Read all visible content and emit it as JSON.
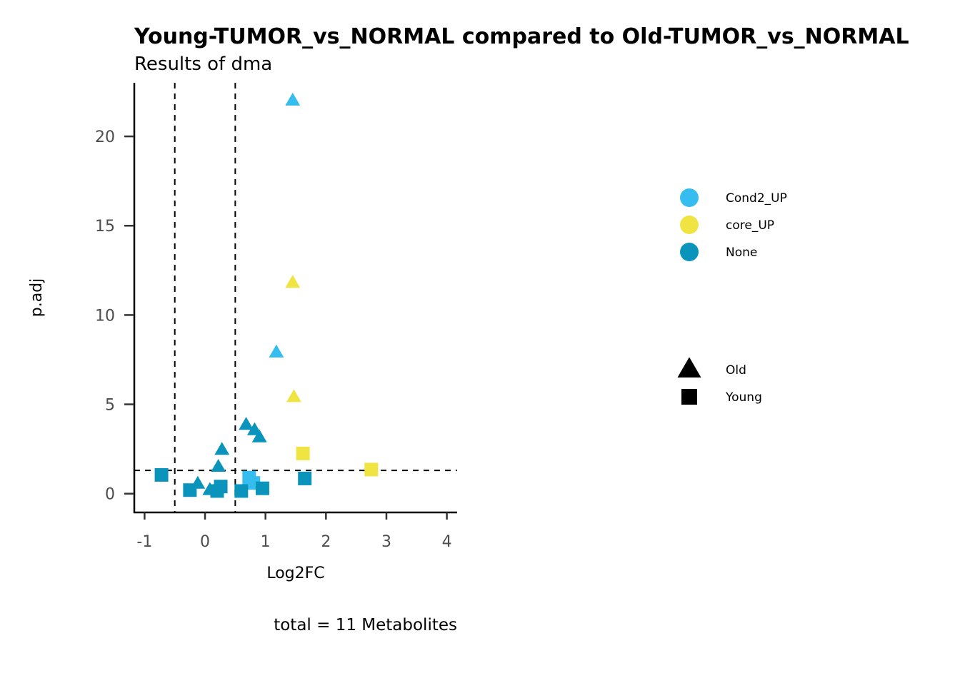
{
  "chart_data": {
    "type": "scatter",
    "title": "Young-TUMOR_vs_NORMAL compared to Old-TUMOR_vs_NORMAL",
    "subtitle": "Results of dma",
    "xlabel": "Log2FC",
    "ylabel": "p.adj",
    "caption": "total = 11 Metabolites",
    "xlim": [
      -1.17,
      4.17
    ],
    "ylim": [
      -1.05,
      23
    ],
    "xticks": [
      -1,
      0,
      1,
      2,
      3,
      4
    ],
    "yticks": [
      0,
      5,
      10,
      15,
      20
    ],
    "reference_lines": {
      "vertical": [
        -0.5,
        0.5
      ],
      "horizontal": [
        1.3
      ]
    },
    "grid": false,
    "legend_position": "right",
    "color_legend": [
      {
        "label": "Cond2_UP",
        "color": "#36bdef"
      },
      {
        "label": "core_UP",
        "color": "#f0e442"
      },
      {
        "label": "None",
        "color": "#0a94bb"
      }
    ],
    "shape_legend": [
      {
        "label": "Old",
        "shape": "triangle"
      },
      {
        "label": "Young",
        "shape": "square"
      }
    ],
    "points": [
      {
        "x": 1.45,
        "y": 22.0,
        "category": "Cond2_UP",
        "group": "Old"
      },
      {
        "x": 1.45,
        "y": 11.8,
        "category": "core_UP",
        "group": "Old"
      },
      {
        "x": 1.18,
        "y": 7.9,
        "category": "Cond2_UP",
        "group": "Old"
      },
      {
        "x": 1.47,
        "y": 5.4,
        "category": "core_UP",
        "group": "Old"
      },
      {
        "x": 0.68,
        "y": 3.85,
        "category": "None",
        "group": "Old"
      },
      {
        "x": 0.82,
        "y": 3.55,
        "category": "None",
        "group": "Old"
      },
      {
        "x": 0.9,
        "y": 3.15,
        "category": "None",
        "group": "Old"
      },
      {
        "x": 0.28,
        "y": 2.45,
        "category": "None",
        "group": "Old"
      },
      {
        "x": 0.22,
        "y": 1.5,
        "category": "None",
        "group": "Old"
      },
      {
        "x": -0.12,
        "y": 0.55,
        "category": "None",
        "group": "Old"
      },
      {
        "x": 0.08,
        "y": 0.2,
        "category": "None",
        "group": "Old"
      },
      {
        "x": 1.62,
        "y": 2.25,
        "category": "core_UP",
        "group": "Young"
      },
      {
        "x": 2.75,
        "y": 1.35,
        "category": "core_UP",
        "group": "Young"
      },
      {
        "x": -0.72,
        "y": 1.05,
        "category": "None",
        "group": "Young"
      },
      {
        "x": 0.73,
        "y": 0.9,
        "category": "Cond2_UP",
        "group": "Young"
      },
      {
        "x": 0.8,
        "y": 0.6,
        "category": "Cond2_UP",
        "group": "Young"
      },
      {
        "x": 1.65,
        "y": 0.85,
        "category": "None",
        "group": "Young"
      },
      {
        "x": -0.25,
        "y": 0.2,
        "category": "None",
        "group": "Young"
      },
      {
        "x": 0.2,
        "y": 0.15,
        "category": "None",
        "group": "Young"
      },
      {
        "x": 0.26,
        "y": 0.4,
        "category": "None",
        "group": "Young"
      },
      {
        "x": 0.6,
        "y": 0.15,
        "category": "None",
        "group": "Young"
      },
      {
        "x": 0.95,
        "y": 0.3,
        "category": "None",
        "group": "Young"
      }
    ]
  }
}
